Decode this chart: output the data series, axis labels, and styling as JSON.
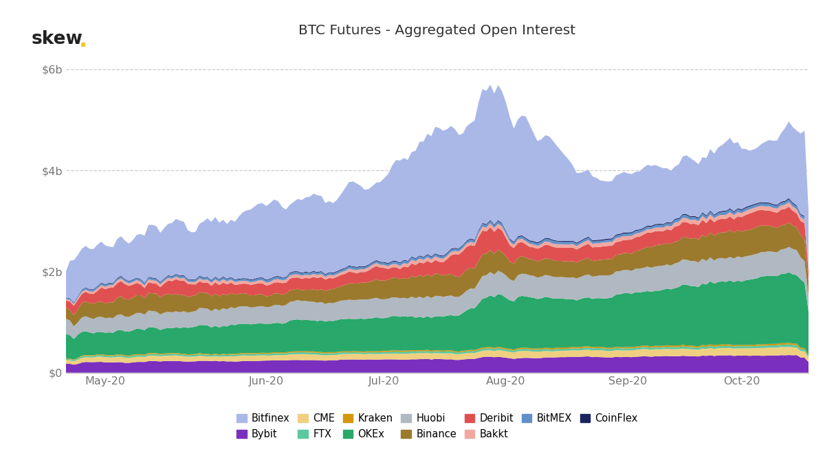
{
  "title": "BTC Futures - Aggregated Open Interest",
  "x_labels": [
    "May-20",
    "Jun-20",
    "Jul-20",
    "Aug-20",
    "Sep-20",
    "Oct-20"
  ],
  "y_labels": [
    "$0",
    "$2b",
    "$4b",
    "$6b"
  ],
  "ylim": 6500000000,
  "background_color": "#ffffff",
  "grid_color": "#cccccc",
  "spine_color": "#aaaaaa",
  "tick_color": "#777777",
  "title_color": "#333333",
  "skew_color": "#222222",
  "dot_color": "#f5c518",
  "legend_items": [
    {
      "name": "Bitfinex",
      "color": "#aab8e8"
    },
    {
      "name": "Bybit",
      "color": "#7b2fbe"
    },
    {
      "name": "CME",
      "color": "#f0d080"
    },
    {
      "name": "FTX",
      "color": "#5cc8a0"
    },
    {
      "name": "Kraken",
      "color": "#d4960a"
    },
    {
      "name": "OKEx",
      "color": "#28a86a"
    },
    {
      "name": "Huobi",
      "color": "#b0b8c1"
    },
    {
      "name": "Binance",
      "color": "#9b7a2e"
    },
    {
      "name": "Deribit",
      "color": "#e05050"
    },
    {
      "name": "Bakkt",
      "color": "#f0a8a0"
    },
    {
      "name": "BitMEX",
      "color": "#6090c8"
    },
    {
      "name": "CoinFlex",
      "color": "#1a2560"
    }
  ]
}
